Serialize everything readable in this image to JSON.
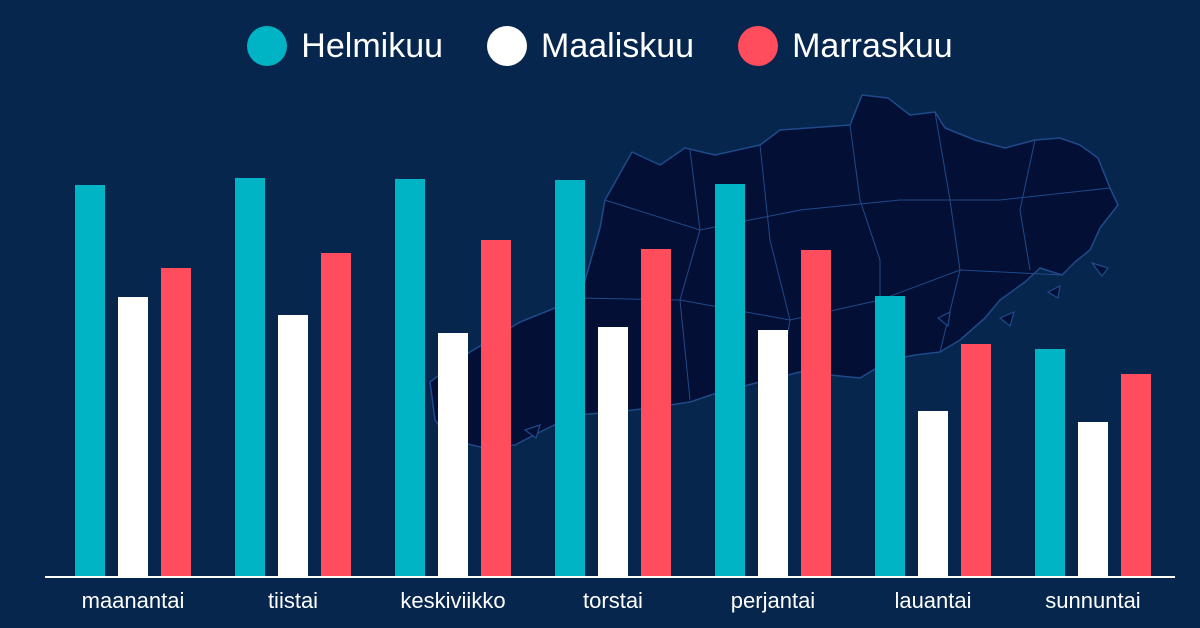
{
  "chart_data": {
    "type": "bar",
    "title": "",
    "xlabel": "",
    "ylabel": "",
    "categories": [
      "maanantai",
      "tiistai",
      "keskiviikko",
      "torstai",
      "perjantai",
      "lauantai",
      "sunnuntai"
    ],
    "series": [
      {
        "name": "Helmikuu",
        "color": "#00b4c6",
        "values": [
          392,
          399,
          398,
          397,
          393,
          281,
          228
        ]
      },
      {
        "name": "Maaliskuu",
        "color": "#ffffff",
        "values": [
          280,
          262,
          244,
          250,
          247,
          166,
          155
        ]
      },
      {
        "name": "Marraskuu",
        "color": "#ff4d5e",
        "values": [
          309,
          324,
          337,
          328,
          327,
          233,
          203
        ]
      }
    ],
    "ylim": [
      0,
      420
    ],
    "grid": false,
    "legend_position": "top-center",
    "background_color": "#06264d",
    "map_silhouette_color": "#040f36"
  }
}
